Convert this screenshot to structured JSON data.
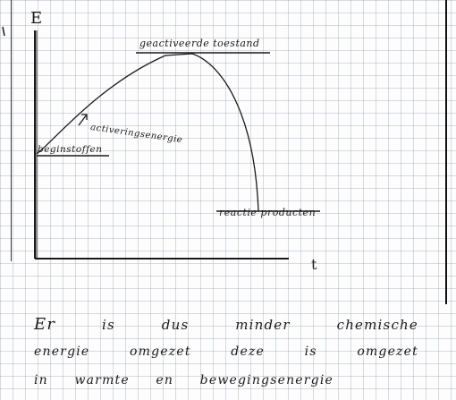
{
  "diagram": {
    "y_axis_label": "E",
    "x_axis_label": "t",
    "peak_label": "geactiveerde toestand",
    "activation_label": "activeringsenergie",
    "reactants_label": "beginstoffen",
    "products_label": "reactie producten"
  },
  "note": {
    "lines": [
      [
        "Er",
        "is",
        "dus",
        "minder",
        "chemische"
      ],
      [
        "energie",
        "omgezet",
        "deze",
        "is",
        "omgezet"
      ],
      [
        "in",
        "warmte",
        "en",
        "bewegingsenergie"
      ]
    ]
  }
}
